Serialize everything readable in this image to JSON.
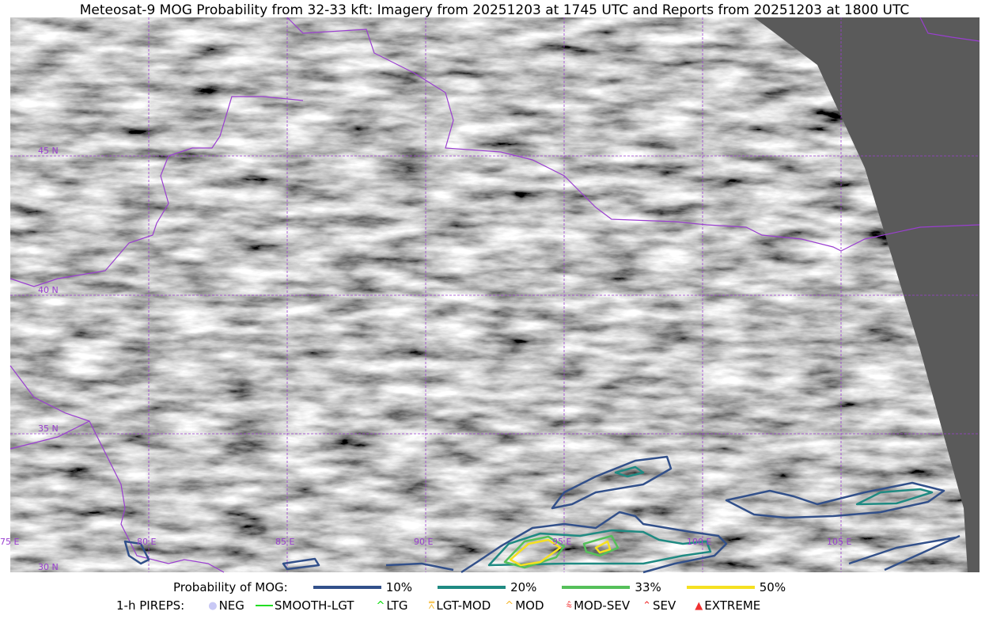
{
  "title": "Meteosat-9 MOG Probability from 32-33 kft: Imagery from 20251203 at 1745 UTC and Reports from 20251203 at 1800 UTC",
  "map": {
    "lon_labels": [
      "75 E",
      "80 E",
      "85 E",
      "90 E",
      "95 E",
      "100 E",
      "105 E"
    ],
    "lat_labels": [
      "45 N",
      "40 N",
      "35 N",
      "30 N"
    ],
    "colors": {
      "grid": "#9a3fd0",
      "border": "#9a3fd0",
      "no_data": "#5a5a5a"
    }
  },
  "legend": {
    "probability_label": "Probability of MOG:",
    "levels": [
      {
        "label": "10%",
        "color": "#32508a"
      },
      {
        "label": "20%",
        "color": "#1f8a82"
      },
      {
        "label": "33%",
        "color": "#55c05a"
      },
      {
        "label": "50%",
        "color": "#f5e020"
      }
    ],
    "pireps_label": "1-h PIREPS:",
    "pireps": [
      {
        "label": "NEG",
        "icon": "neg-circle-icon",
        "color": "#c8c8f5"
      },
      {
        "label": "SMOOTH-LGT",
        "icon": "line-icon",
        "color": "#22dd22"
      },
      {
        "label": "LTG",
        "icon": "caret-icon",
        "color": "#00dd00"
      },
      {
        "label": "LGT-MOD",
        "icon": "caret-bar-icon",
        "color": "#f5b830"
      },
      {
        "label": "MOD",
        "icon": "caret-icon",
        "color": "#f5b830"
      },
      {
        "label": "MOD-SEV",
        "icon": "double-caret-bar-icon",
        "color": "#f03030"
      },
      {
        "label": "SEV",
        "icon": "double-caret-icon",
        "color": "#f03030"
      },
      {
        "label": "EXTREME",
        "icon": "filled-triangle-icon",
        "color": "#f03030"
      }
    ]
  }
}
